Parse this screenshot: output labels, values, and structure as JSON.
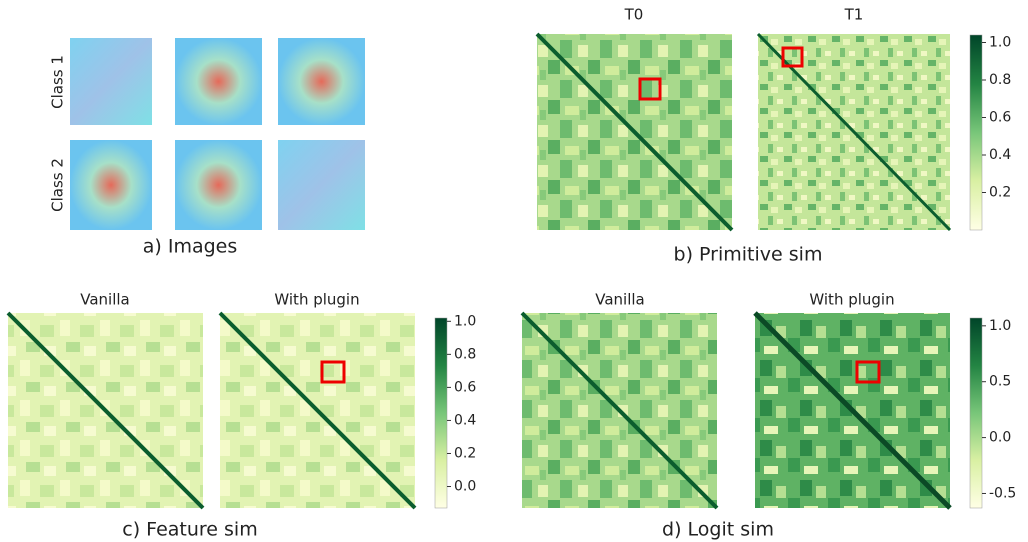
{
  "panels": {
    "images": {
      "caption": "a) Images",
      "row_labels": [
        "Class 1",
        "Class 2"
      ]
    },
    "primitive": {
      "caption": "b) Primitive sim",
      "titles": [
        "T0",
        "T1"
      ],
      "colorbar": {
        "lim": [
          0,
          1.04
        ],
        "ticks": [
          0.2,
          0.4,
          0.6,
          0.8,
          {
            "value": 1,
            "label": "1.0"
          }
        ]
      }
    },
    "feature": {
      "caption": "c) Feature sim",
      "titles": [
        "Vanilla",
        "With plugin"
      ],
      "colorbar": {
        "lim": [
          -0.13,
          1.02
        ],
        "ticks": [
          {
            "value": 0,
            "label": "0.0"
          },
          0.2,
          0.4,
          0.6,
          0.8,
          {
            "value": 1,
            "label": "1.0"
          }
        ]
      }
    },
    "logit": {
      "caption": "d) Logit sim",
      "titles": [
        "Vanilla",
        "With plugin"
      ],
      "colorbar": {
        "lim": [
          -0.63,
          1.07
        ],
        "ticks": [
          -0.5,
          {
            "value": 0,
            "label": "0.0"
          },
          0.5,
          {
            "value": 1,
            "label": "1.0"
          }
        ]
      }
    }
  }
}
